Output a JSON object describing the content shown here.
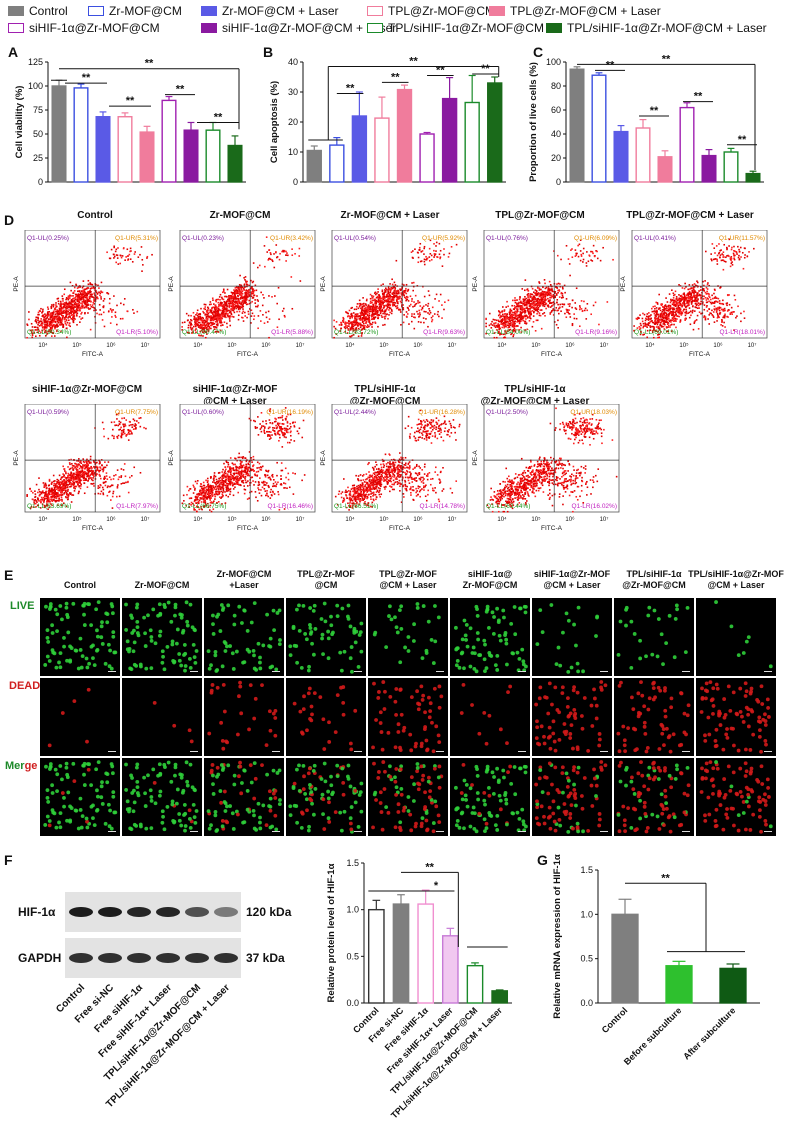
{
  "legend": [
    {
      "label": "Control",
      "color": "#7f7f7f",
      "fill": true
    },
    {
      "label": "Zr-MOF@CM",
      "color": "#3b4fe0",
      "fill": false
    },
    {
      "label": "Zr-MOF@CM + Laser",
      "color": "#5a5ae6",
      "fill": true
    },
    {
      "label": "TPL@Zr-MOF@CM",
      "color": "#f07c9c",
      "fill": false
    },
    {
      "label": "TPL@Zr-MOF@CM + Laser",
      "color": "#f07c9c",
      "fill": true
    },
    {
      "label": "siHIF-1α@Zr-MOF@CM",
      "color": "#a020b0",
      "fill": false
    },
    {
      "label": "siHIF-1α@Zr-MOF@CM + Laser",
      "color": "#8a1aa0",
      "fill": true
    },
    {
      "label": "TPL/siHIF-1α@Zr-MOF@CM",
      "color": "#1a8a2a",
      "fill": false
    },
    {
      "label": "TPL/siHIF-1α@Zr-MOF@CM + Laser",
      "color": "#1a6a1a",
      "fill": true
    }
  ],
  "panels": {
    "A": "A",
    "B": "B",
    "C": "C",
    "D": "D",
    "E": "E",
    "F": "F",
    "G": "G"
  },
  "chart_data": [
    {
      "panel": "A",
      "type": "bar",
      "ylabel": "Cell viability (%)",
      "ylim": [
        0,
        125
      ],
      "yticks": [
        0,
        25,
        50,
        75,
        100,
        125
      ],
      "values": [
        100,
        98,
        68,
        68,
        52,
        85,
        54,
        54,
        38
      ],
      "errors": [
        6,
        4,
        5,
        4,
        6,
        4,
        8,
        8,
        10
      ],
      "sig": [
        "**",
        "**",
        "**",
        "**",
        "**"
      ]
    },
    {
      "panel": "B",
      "type": "bar",
      "ylabel": "Cell apoptosis (%)",
      "ylim": [
        0,
        40
      ],
      "yticks": [
        0,
        10,
        20,
        30,
        40
      ],
      "values": [
        10.5,
        12.3,
        22,
        21.3,
        30.8,
        16,
        27.8,
        26.5,
        33
      ],
      "errors": [
        1.5,
        2.5,
        8,
        7,
        1.5,
        0.5,
        7,
        9,
        2
      ],
      "sig": [
        "**",
        "**",
        "**",
        "**",
        "**"
      ]
    },
    {
      "panel": "C",
      "type": "bar",
      "ylabel": "Proportion of live cells (%)",
      "ylim": [
        0,
        100
      ],
      "yticks": [
        0,
        20,
        40,
        60,
        80,
        100
      ],
      "values": [
        94,
        89,
        42,
        45,
        21,
        62,
        22,
        25,
        7
      ],
      "errors": [
        2,
        2,
        5,
        7,
        5,
        4,
        5,
        3,
        2
      ],
      "sig": [
        "**",
        "**",
        "**",
        "**",
        "**"
      ]
    },
    {
      "panel": "F",
      "type": "bar",
      "ylabel": "Relative protein level of HIF-1α",
      "ylim": [
        0,
        1.5
      ],
      "yticks": [
        "0.0",
        "0.5",
        "1.0",
        "1.5"
      ],
      "categories": [
        "Control",
        "Free si-NC",
        "Free siHIF-1α",
        "Free siHIF-1α+ Laser",
        "TPL/siHIF-1α@Zr-MOF@CM",
        "TPL/siHIF-1α@Zr-MOF@CM + Laser"
      ],
      "values": [
        1.0,
        1.06,
        1.06,
        0.72,
        0.4,
        0.13
      ],
      "errors": [
        0.1,
        0.1,
        0.15,
        0.08,
        0.03,
        0.01
      ],
      "sig": [
        "*",
        "**"
      ]
    },
    {
      "panel": "G",
      "type": "bar",
      "ylabel": "Relative mRNA expression of HIF-1α",
      "ylim": [
        0,
        1.5
      ],
      "yticks": [
        "0.0",
        "0.5",
        "1.0",
        "1.5"
      ],
      "categories": [
        "Control",
        "Before subculture",
        "After subculture"
      ],
      "values": [
        1.0,
        0.42,
        0.39
      ],
      "errors": [
        0.17,
        0.05,
        0.05
      ],
      "sig": [
        "**"
      ]
    }
  ],
  "flow": {
    "xlabel": "FITC-A",
    "ylabel": "PE-A",
    "plots": [
      {
        "title": "Control",
        "ul": "Q1-UL(0.25%)",
        "ur": "Q1-UR(5.31%)",
        "ll": "Q1-LL(90.34%)",
        "lr": "Q1-LR(5.10%)",
        "late": 0.05,
        "early": 0.05
      },
      {
        "title": "Zr-MOF@CM",
        "ul": "Q1-UL(0.23%)",
        "ur": "Q1-UR(3.42%)",
        "ll": "Q1-LL(90.47%)",
        "lr": "Q1-LR(5.88%)",
        "late": 0.04,
        "early": 0.06
      },
      {
        "title": "Zr-MOF@CM + Laser",
        "ul": "Q1-UL(0.54%)",
        "ur": "Q1-UR(5.92%)",
        "ll": "Q1-LL(83.72%)",
        "lr": "Q1-LR(9.63%)",
        "late": 0.06,
        "early": 0.1
      },
      {
        "title": "TPL@Zr-MOF@CM",
        "ul": "Q1-UL(0.76%)",
        "ur": "Q1-UR(6.09%)",
        "ll": "Q1-LL(84.00%)",
        "lr": "Q1-LR(9.16%)",
        "late": 0.06,
        "early": 0.09
      },
      {
        "title": "TPL@Zr-MOF@CM + Laser",
        "ul": "Q1-UL(0.41%)",
        "ur": "Q1-UR(11.57%)",
        "ll": "Q1-LL(69.01%)",
        "lr": "Q1-LR(18.01%)",
        "late": 0.12,
        "early": 0.18
      },
      {
        "title": "siHIF-1α@Zr-MOF@CM",
        "ul": "Q1-UL(0.59%)",
        "ur": "Q1-UR(7.75%)",
        "ll": "Q1-LL(83.69%)",
        "lr": "Q1-LR(7.97%)",
        "late": 0.08,
        "early": 0.08
      },
      {
        "title": "siHIF-1α@Zr-MOF\n@CM + Laser",
        "ul": "Q1-UL(0.60%)",
        "ur": "Q1-UR(16.19%)",
        "ll": "Q1-LL(66.75%)",
        "lr": "Q1-LR(16.46%)",
        "late": 0.16,
        "early": 0.16
      },
      {
        "title": "TPL/siHIF-1α\n@Zr-MOF@CM",
        "ul": "Q1-UL(2.44%)",
        "ur": "Q1-UR(16.28%)",
        "ll": "Q1-LL(66.51%)",
        "lr": "Q1-LR(14.78%)",
        "late": 0.16,
        "early": 0.15
      },
      {
        "title": "TPL/siHIF-1α\n@Zr-MOF@CM + Laser",
        "ul": "Q1-UL(2.50%)",
        "ur": "Q1-UR(18.03%)",
        "ll": "Q1-LL(63.44%)",
        "lr": "Q1-LR(16.02%)",
        "late": 0.18,
        "early": 0.16
      }
    ]
  },
  "micro": {
    "headers": [
      "Control",
      "Zr-MOF@CM",
      "Zr-MOF@CM\n+Laser",
      "TPL@Zr-MOF\n@CM",
      "TPL@Zr-MOF\n@CM + Laser",
      "siHIF-1α@\nZr-MOF@CM",
      "siHIF-1α@Zr-MOF\n@CM + Laser",
      "TPL/siHIF-1α\n@Zr-MOF@CM",
      "TPL/siHIF-1α@Zr-MOF\n@CM + Laser"
    ],
    "rows": {
      "live": "LIVE",
      "dead": "DEAD",
      "merge_a": "Mer",
      "merge_b": "ge"
    },
    "dead_fraction": [
      0.05,
      0.08,
      0.35,
      0.3,
      0.7,
      0.2,
      0.75,
      0.7,
      0.88
    ]
  },
  "western": {
    "bands": [
      {
        "label": "HIF-1α",
        "size": "120 kDa"
      },
      {
        "label": "GAPDH",
        "size": "37 kDa"
      }
    ],
    "lanes": [
      "Control",
      "Free si-NC",
      "Free siHIF-1α",
      "Free siHIF-1α+ Laser",
      "TPL/siHIF-1α@Zr-MOF@CM",
      "TPL/siHIF-1α@Zr-MOF@CM + Laser"
    ],
    "hif_intensity": [
      0.95,
      0.95,
      0.9,
      0.9,
      0.7,
      0.5
    ]
  }
}
